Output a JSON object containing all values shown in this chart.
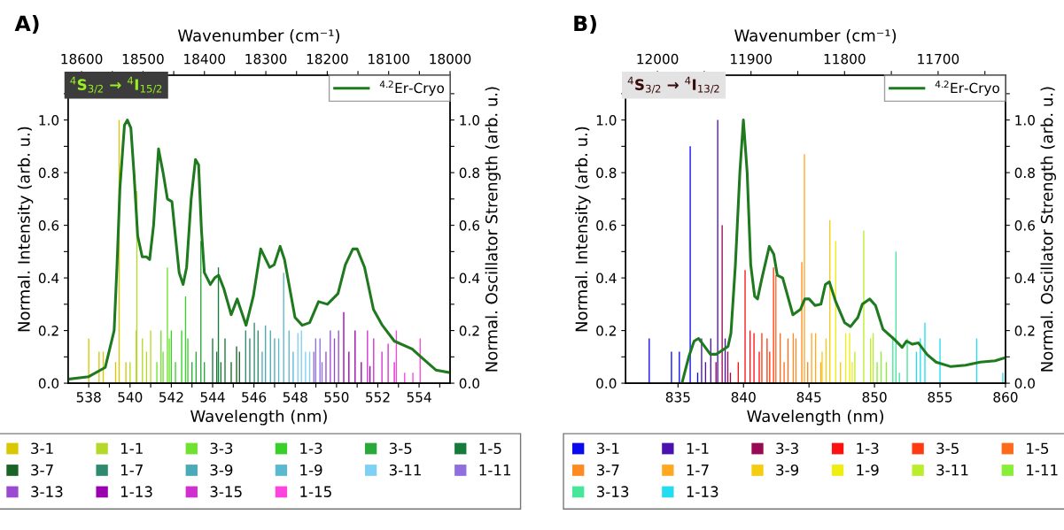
{
  "chart_data": [
    {
      "type": "bar",
      "title": "A)",
      "xlabel": "Wavelength (nm)",
      "x2label": "Wavenumber (cm⁻¹)",
      "ylabel": "Normal. Intensity (arb. u.)",
      "y2label": "Normal. Oscillator Strength (arb. u.)",
      "annotations": [
        "$^{4}$S$_{3/2}$ → $^{4}$I$_{15/2}$"
      ],
      "legend": "bottom",
      "xlim": [
        537,
        555.5
      ],
      "xticks": [
        538,
        {
          "value": 539,
          "label": null
        },
        540,
        {
          "value": 541,
          "label": null
        },
        542,
        {
          "value": 543,
          "label": null
        },
        544,
        {
          "value": 545,
          "label": null
        },
        546,
        {
          "value": 547,
          "label": null
        },
        548,
        {
          "value": 549,
          "label": null
        },
        550,
        {
          "value": 551,
          "label": null
        },
        552,
        {
          "value": 553,
          "label": null
        },
        554,
        {
          "value": 555,
          "label": null
        }
      ],
      "x2lim": [
        18622,
        18000
      ],
      "x2ticks": [
        18600,
        {
          "value": 18550,
          "label": null
        },
        18500,
        {
          "value": 18450,
          "label": null
        },
        18400,
        {
          "value": 18350,
          "label": null
        },
        18300,
        {
          "value": 18250,
          "label": null
        },
        18200,
        {
          "value": 18150,
          "label": null
        },
        18100,
        {
          "value": 18050,
          "label": null
        },
        18000
      ],
      "ylim": [
        0,
        1.17
      ],
      "yticks": [
        {
          "value": 0,
          "label": "0.0"
        },
        {
          "value": 0.1,
          "label": null
        },
        {
          "value": 0.2,
          "label": "0.2"
        },
        {
          "value": 0.3,
          "label": null
        },
        {
          "value": 0.4,
          "label": "0.4"
        },
        {
          "value": 0.5,
          "label": null
        },
        {
          "value": 0.6,
          "label": "0.6"
        },
        {
          "value": 0.7,
          "label": null
        },
        {
          "value": 0.8,
          "label": "0.8"
        },
        {
          "value": 0.9,
          "label": null
        },
        {
          "value": 1.0,
          "label": "1.0"
        },
        {
          "value": 1.1,
          "label": null
        }
      ],
      "y2lim": [
        0,
        1.17
      ],
      "y2ticks": [
        {
          "value": 0,
          "label": "0.0"
        },
        {
          "value": 0.1,
          "label": null
        },
        {
          "value": 0.2,
          "label": "0.2"
        },
        {
          "value": 0.3,
          "label": null
        },
        {
          "value": 0.4,
          "label": "0.4"
        },
        {
          "value": 0.5,
          "label": null
        },
        {
          "value": 0.6,
          "label": "0.6"
        },
        {
          "value": 0.7,
          "label": null
        },
        {
          "value": 0.8,
          "label": "0.8"
        },
        {
          "value": 0.9,
          "label": null
        },
        {
          "value": 1.0,
          "label": "1.0"
        },
        {
          "value": 1.1,
          "label": null
        }
      ],
      "series": [
        {
          "name": "3-1",
          "axis": "y2",
          "color": "#d9c800",
          "x": [
            538.0,
            538.5,
            538.7,
            539.3,
            539.47,
            539.8
          ],
          "values": [
            0.17,
            0.12,
            0.12,
            0.08,
            1.0,
            0.08
          ]
        },
        {
          "name": "1-1",
          "axis": "y2",
          "color": "#b5d92a",
          "x": [
            540.0,
            540.3,
            540.33,
            540.6,
            540.8,
            541.0
          ],
          "values": [
            0.08,
            0.2,
            0.73,
            0.17,
            0.12,
            0.2
          ]
        },
        {
          "name": "3-3",
          "axis": "y2",
          "color": "#6ee22e",
          "x": [
            541.3,
            541.5,
            541.6,
            541.81,
            541.9
          ],
          "values": [
            0.08,
            0.2,
            0.12,
            0.44,
            0.17
          ]
        },
        {
          "name": "1-3",
          "axis": "y2",
          "color": "#3ad02a",
          "x": [
            542.0,
            542.2,
            542.5,
            542.69,
            542.8
          ],
          "values": [
            0.2,
            0.08,
            0.2,
            0.33,
            0.17
          ]
        },
        {
          "name": "3-5",
          "axis": "y2",
          "color": "#2aa83a",
          "x": [
            543.0,
            543.2,
            543.43,
            543.6
          ],
          "values": [
            0.08,
            0.12,
            0.54,
            0.08
          ]
        },
        {
          "name": "1-5",
          "axis": "y2",
          "color": "#167a3a",
          "x": [
            544.0,
            544.2,
            544.28,
            544.4,
            544.6
          ],
          "values": [
            0.17,
            0.12,
            0.44,
            0.08,
            0.17
          ]
        },
        {
          "name": "3-7",
          "axis": "y2",
          "color": "#1a6428",
          "x": [
            544.9,
            545.16,
            545.3
          ],
          "values": [
            0.08,
            0.14,
            0.12
          ]
        },
        {
          "name": "1-7",
          "axis": "y2",
          "color": "#2e8a6e",
          "x": [
            545.6,
            545.8,
            546.02,
            546.2
          ],
          "values": [
            0.2,
            0.17,
            0.23,
            0.2
          ]
        },
        {
          "name": "3-9",
          "axis": "y2",
          "color": "#4aaab8",
          "x": [
            546.4,
            546.56,
            546.8,
            547.0
          ],
          "values": [
            0.12,
            0.22,
            0.2,
            0.17
          ]
        },
        {
          "name": "1-9",
          "axis": "y2",
          "color": "#5ab8d0",
          "x": [
            547.2,
            547.44,
            547.7,
            547.9
          ],
          "values": [
            0.17,
            0.42,
            0.2,
            0.12
          ]
        },
        {
          "name": "3-11",
          "axis": "y2",
          "color": "#7fd0f5",
          "x": [
            548.13,
            548.3,
            548.5,
            548.7
          ],
          "values": [
            0.19,
            0.2,
            0.12,
            0.12
          ]
        },
        {
          "name": "1-11",
          "axis": "y2",
          "color": "#8f6ee0",
          "x": [
            548.9,
            548.99,
            549.2,
            549.3
          ],
          "values": [
            0.12,
            0.17,
            0.17,
            0.08
          ]
        },
        {
          "name": "3-13",
          "axis": "y2",
          "color": "#9a4ad0",
          "x": [
            549.49,
            549.7,
            549.9,
            550.1
          ],
          "values": [
            0.12,
            0.2,
            0.17,
            0.2
          ]
        },
        {
          "name": "1-13",
          "axis": "y2",
          "color": "#9a00b0",
          "x": [
            550.35,
            550.6,
            550.9,
            551.2,
            551.62
          ],
          "values": [
            0.27,
            0.12,
            0.2,
            0.08,
            0.065
          ]
        },
        {
          "name": "3-15",
          "axis": "y2",
          "color": "#d030d0",
          "x": [
            551.5,
            551.8,
            552.2,
            552.5,
            552.8
          ],
          "values": [
            0.2,
            0.17,
            0.12,
            0.15,
            0.08
          ]
        },
        {
          "name": "1-15",
          "axis": "y2",
          "color": "#ff44dd",
          "x": [
            552.9,
            553.3,
            553.7,
            554.05
          ],
          "values": [
            0.2,
            0.04,
            0.04,
            0.17
          ]
        },
        {
          "name": "$^{4.2}$Er-Cryo",
          "type": "line",
          "axis": "y",
          "color": "#1f7a1f",
          "x": [
            537.0,
            538.0,
            538.8,
            539.23,
            539.37,
            539.51,
            539.73,
            539.87,
            540.04,
            540.19,
            540.37,
            540.59,
            540.8,
            540.95,
            541.14,
            541.38,
            541.6,
            541.81,
            542.03,
            542.17,
            542.38,
            542.57,
            542.74,
            542.96,
            543.17,
            543.32,
            543.46,
            543.6,
            543.89,
            544.1,
            544.29,
            544.54,
            544.9,
            545.19,
            545.62,
            545.97,
            546.33,
            546.76,
            546.98,
            547.27,
            547.48,
            547.99,
            548.34,
            548.7,
            549.13,
            549.56,
            550.07,
            550.43,
            550.79,
            551.0,
            551.36,
            551.79,
            552.22,
            552.8,
            553.66,
            554.09,
            554.81,
            555.5
          ],
          "values": [
            0.015,
            0.025,
            0.06,
            0.2,
            0.45,
            0.74,
            0.98,
            1.0,
            0.97,
            0.8,
            0.56,
            0.48,
            0.48,
            0.47,
            0.6,
            0.89,
            0.8,
            0.7,
            0.69,
            0.58,
            0.42,
            0.375,
            0.44,
            0.7,
            0.85,
            0.83,
            0.58,
            0.42,
            0.375,
            0.4,
            0.41,
            0.36,
            0.26,
            0.32,
            0.22,
            0.33,
            0.51,
            0.44,
            0.45,
            0.52,
            0.47,
            0.25,
            0.22,
            0.23,
            0.31,
            0.3,
            0.34,
            0.45,
            0.51,
            0.51,
            0.44,
            0.28,
            0.22,
            0.16,
            0.13,
            0.1,
            0.05,
            0.04
          ]
        }
      ]
    },
    {
      "type": "bar",
      "title": "B)",
      "xlabel": "Wavelength (nm)",
      "x2label": "Wavenumber (cm⁻¹)",
      "ylabel": "Normal. Intensity (arb. u.)",
      "y2label": "Normal. Oscillator Strength (arb. u.)",
      "annotations": [
        "$^{4}$S$_{3/2}$ → $^{4}$I$_{13/2}$"
      ],
      "legend": "bottom",
      "xlim": [
        831,
        860
      ],
      "xticks": [
        835,
        840,
        845,
        850,
        855,
        860
      ],
      "x2lim": [
        12034,
        11628
      ],
      "x2ticks": [
        12000,
        {
          "value": 11950,
          "label": null
        },
        11900,
        {
          "value": 11850,
          "label": null
        },
        11800,
        {
          "value": 11750,
          "label": null
        },
        11700,
        {
          "value": 11650,
          "label": null
        }
      ],
      "ylim": [
        0,
        1.17
      ],
      "yticks": [
        {
          "value": 0,
          "label": "0.0"
        },
        {
          "value": 0.1,
          "label": null
        },
        {
          "value": 0.2,
          "label": "0.2"
        },
        {
          "value": 0.3,
          "label": null
        },
        {
          "value": 0.4,
          "label": "0.4"
        },
        {
          "value": 0.5,
          "label": null
        },
        {
          "value": 0.6,
          "label": "0.6"
        },
        {
          "value": 0.7,
          "label": null
        },
        {
          "value": 0.8,
          "label": "0.8"
        },
        {
          "value": 0.9,
          "label": null
        },
        {
          "value": 1.0,
          "label": "1.0"
        },
        {
          "value": 1.1,
          "label": null
        }
      ],
      "y2lim": [
        0,
        1.17
      ],
      "y2ticks": [
        {
          "value": 0,
          "label": "0.0"
        },
        {
          "value": 0.1,
          "label": null
        },
        {
          "value": 0.2,
          "label": "0.2"
        },
        {
          "value": 0.3,
          "label": null
        },
        {
          "value": 0.4,
          "label": "0.4"
        },
        {
          "value": 0.5,
          "label": null
        },
        {
          "value": 0.6,
          "label": "0.6"
        },
        {
          "value": 0.7,
          "label": null
        },
        {
          "value": 0.8,
          "label": "0.8"
        },
        {
          "value": 0.9,
          "label": null
        },
        {
          "value": 1.0,
          "label": "1.0"
        },
        {
          "value": 1.1,
          "label": null
        }
      ],
      "series": [
        {
          "name": "3-1",
          "axis": "y2",
          "color": "#0a0aee",
          "x": [
            832.8,
            834.5,
            835.1,
            835.93,
            836.5
          ],
          "values": [
            0.17,
            0.12,
            0.12,
            0.9,
            0.04
          ]
        },
        {
          "name": "1-1",
          "axis": "y2",
          "color": "#4a10b0",
          "x": [
            836.8,
            837.1,
            837.5,
            838.03,
            838.6
          ],
          "values": [
            0.17,
            0.08,
            0.17,
            1.0,
            0.17
          ]
        },
        {
          "name": "3-3",
          "axis": "y2",
          "color": "#990a55",
          "x": [
            837.9,
            838.37,
            838.8,
            839.0
          ],
          "values": [
            0.08,
            0.6,
            0.12,
            0.04
          ]
        },
        {
          "name": "1-3",
          "axis": "y2",
          "color": "#ff1010",
          "x": [
            839.6,
            840.12,
            840.5,
            840.8,
            841.2
          ],
          "values": [
            0.08,
            0.43,
            0.2,
            0.19,
            0.12
          ]
        },
        {
          "name": "3-5",
          "axis": "y2",
          "color": "#ff3a10",
          "x": [
            841.4,
            841.8,
            842.0,
            842.29
          ],
          "values": [
            0.19,
            0.17,
            0.12,
            0.44
          ]
        },
        {
          "name": "1-5",
          "axis": "y2",
          "color": "#ff6a1a",
          "x": [
            842.47,
            842.8,
            843.1,
            843.4
          ],
          "values": [
            0.41,
            0.19,
            0.08,
            0.17
          ]
        },
        {
          "name": "3-7",
          "axis": "y2",
          "color": "#ff8a20",
          "x": [
            843.8,
            844.0,
            844.45,
            844.9
          ],
          "values": [
            0.19,
            0.17,
            0.46,
            0.08
          ]
        },
        {
          "name": "1-7",
          "axis": "y2",
          "color": "#ffa820",
          "x": [
            844.65,
            845.2,
            845.5,
            845.9
          ],
          "values": [
            0.87,
            0.19,
            0.19,
            0.08
          ]
        },
        {
          "name": "3-9",
          "axis": "y2",
          "color": "#f5cc10",
          "x": [
            846.0,
            846.3,
            846.59,
            847.4
          ],
          "values": [
            0.12,
            0.17,
            0.62,
            0.08
          ]
        },
        {
          "name": "1-9",
          "axis": "y2",
          "color": "#eeee10",
          "x": [
            847.04,
            847.8,
            848.1,
            848.3
          ],
          "values": [
            0.54,
            0.19,
            0.19,
            0.08
          ]
        },
        {
          "name": "3-11",
          "axis": "y2",
          "color": "#bbee2a",
          "x": [
            848.5,
            849.18,
            849.7,
            849.9
          ],
          "values": [
            0.12,
            0.58,
            0.17,
            0.19
          ]
        },
        {
          "name": "1-11",
          "axis": "y2",
          "color": "#88ee38",
          "x": [
            850.2,
            850.5,
            850.9
          ],
          "values": [
            0.08,
            0.12,
            0.08
          ]
        },
        {
          "name": "3-13",
          "axis": "y2",
          "color": "#44e898",
          "x": [
            851.4,
            851.64,
            851.9,
            852.5
          ],
          "values": [
            0.17,
            0.5,
            0.04,
            0.17
          ]
        },
        {
          "name": "1-13",
          "axis": "y2",
          "color": "#22ddf0",
          "x": [
            853.2,
            853.5,
            853.85,
            855.0,
            857.8,
            859.8
          ],
          "values": [
            0.12,
            0.17,
            0.23,
            0.17,
            0.17,
            0.04
          ]
        },
        {
          "name": "$^{4.2}$Er-Cryo",
          "type": "line",
          "axis": "y",
          "color": "#1f7a1f",
          "x": [
            835.3,
            835.82,
            836.23,
            836.57,
            837.02,
            837.47,
            837.92,
            838.37,
            838.82,
            839.04,
            839.38,
            839.72,
            839.99,
            840.28,
            840.55,
            840.85,
            841.07,
            841.41,
            841.97,
            842.31,
            842.58,
            842.99,
            843.77,
            844.34,
            844.68,
            845.01,
            845.46,
            845.91,
            846.25,
            846.55,
            847.04,
            847.72,
            848.17,
            848.73,
            849.07,
            849.63,
            850.08,
            850.65,
            851.55,
            852.11,
            852.45,
            852.9,
            853.35,
            854.03,
            854.7,
            855.83,
            856.95,
            858.08,
            859.21,
            860.0
          ],
          "values": [
            0.0,
            0.1,
            0.16,
            0.17,
            0.14,
            0.11,
            0.11,
            0.125,
            0.14,
            0.19,
            0.45,
            0.8,
            1.0,
            0.8,
            0.45,
            0.33,
            0.32,
            0.4,
            0.52,
            0.49,
            0.41,
            0.4,
            0.26,
            0.28,
            0.32,
            0.32,
            0.295,
            0.3,
            0.375,
            0.385,
            0.31,
            0.23,
            0.215,
            0.25,
            0.3,
            0.32,
            0.295,
            0.205,
            0.165,
            0.136,
            0.16,
            0.148,
            0.153,
            0.108,
            0.08,
            0.063,
            0.068,
            0.08,
            0.085,
            0.097
          ]
        }
      ]
    }
  ]
}
